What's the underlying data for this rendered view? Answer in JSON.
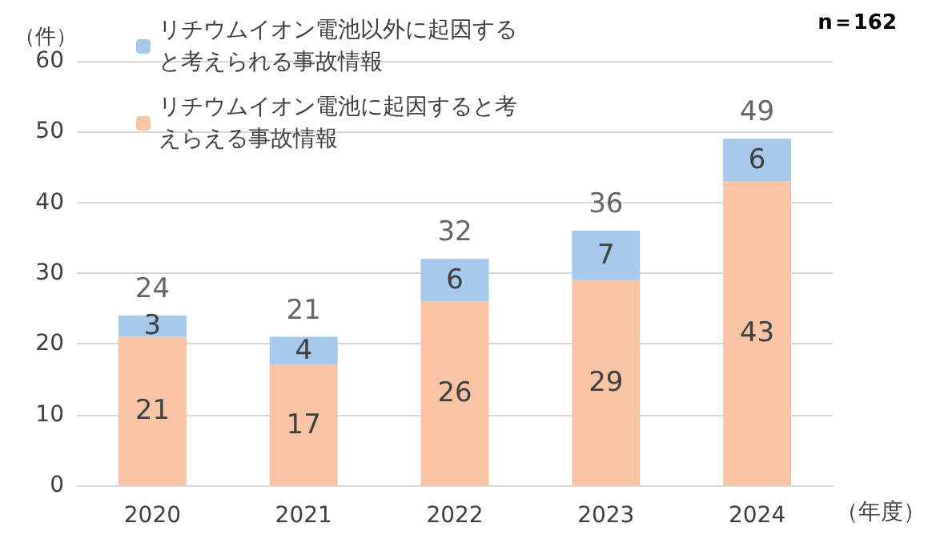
{
  "chart_data": {
    "type": "bar",
    "stacked": true,
    "ylabel": "（件）",
    "xlabel": "（年度）",
    "annotations": [
      "n＝162"
    ],
    "categories": [
      "2020",
      "2021",
      "2022",
      "2023",
      "2024"
    ],
    "series": [
      {
        "name": "リチウムイオン電池に起因すると考えらえる事故情報",
        "color": "#f8c4a6",
        "values": [
          21,
          17,
          26,
          29,
          43
        ]
      },
      {
        "name": "リチウムイオン電池以外に起因すると考えられる事故情報",
        "color": "#a6c9ec",
        "values": [
          3,
          4,
          6,
          7,
          6
        ]
      }
    ],
    "totals": [
      "24",
      "21",
      "32",
      "36",
      "49"
    ],
    "data_labels": true,
    "ylim": [
      0,
      60
    ],
    "yticks": [
      0,
      10,
      20,
      30,
      40,
      50,
      60
    ],
    "grid": "y",
    "legend": "top left"
  }
}
